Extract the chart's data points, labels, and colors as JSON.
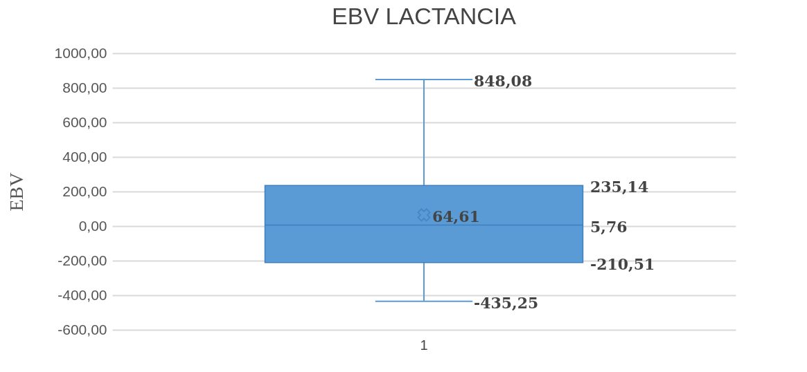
{
  "chart_data": {
    "type": "box",
    "title": "EBV LACTANCIA",
    "ylabel": "EBV",
    "categories": [
      "1"
    ],
    "boxes": [
      {
        "low": -435.25,
        "q1": -210.51,
        "median": 5.76,
        "q3": 235.14,
        "high": 848.08,
        "mean": 64.61
      }
    ],
    "color": "#5b9bd5",
    "ylim": [
      -600,
      1000
    ],
    "yticks": [
      {
        "value": -600,
        "label": "-600,00"
      },
      {
        "value": -400,
        "label": "-400,00"
      },
      {
        "value": -200,
        "label": "-200,00"
      },
      {
        "value": 0,
        "label": "0,00"
      },
      {
        "value": 200,
        "label": "200,00"
      },
      {
        "value": 400,
        "label": "400,00"
      },
      {
        "value": 600,
        "label": "600,00"
      },
      {
        "value": 800,
        "label": "800,00"
      },
      {
        "value": 1000,
        "label": "1000,00"
      }
    ],
    "grid": "y",
    "annotations": [
      "848,08",
      "235,14",
      "64,61",
      "5,76",
      "-210,51",
      "-435,25"
    ]
  }
}
